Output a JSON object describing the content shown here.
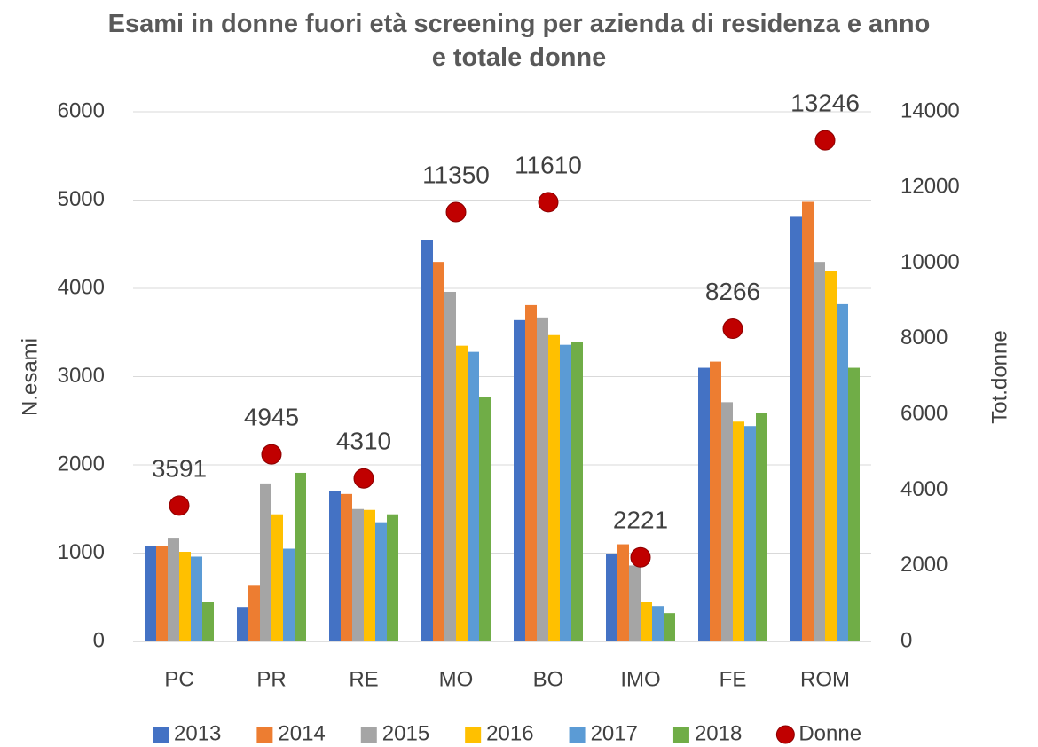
{
  "chart_data": {
    "type": "bar",
    "title": "Esami in donne fuori età screening per azienda di residenza e anno e totale donne",
    "y_label": "N.esami",
    "y2_label": "Tot.donne",
    "categories": [
      "PC",
      "PR",
      "RE",
      "MO",
      "BO",
      "IMO",
      "FE",
      "ROM"
    ],
    "series": [
      {
        "name": "2013",
        "color": "#4472c4",
        "values": [
          1085,
          390,
          1700,
          4550,
          3640,
          990,
          3100,
          4810
        ]
      },
      {
        "name": "2014",
        "color": "#ed7d31",
        "values": [
          1080,
          640,
          1670,
          4300,
          3810,
          1100,
          3170,
          4980
        ]
      },
      {
        "name": "2015",
        "color": "#a5a5a5",
        "values": [
          1175,
          1790,
          1500,
          3960,
          3670,
          860,
          2710,
          4300
        ]
      },
      {
        "name": "2016",
        "color": "#ffc000",
        "values": [
          1015,
          1440,
          1490,
          3350,
          3470,
          450,
          2490,
          4200
        ]
      },
      {
        "name": "2017",
        "color": "#5b9bd5",
        "values": [
          960,
          1050,
          1350,
          3280,
          3360,
          400,
          2440,
          3820
        ]
      },
      {
        "name": "2018",
        "color": "#70ad47",
        "values": [
          450,
          1910,
          1440,
          2770,
          3390,
          320,
          2590,
          3100
        ]
      },
      {
        "name": "Donne",
        "color": "#c00000",
        "type": "scatter",
        "axis": "y2",
        "values": [
          3591,
          4945,
          4310,
          11350,
          11610,
          2221,
          8266,
          13246
        ]
      }
    ],
    "ylim": [
      0,
      6000
    ],
    "yticks": [
      0,
      1000,
      2000,
      3000,
      4000,
      5000,
      6000
    ],
    "y2lim": [
      0,
      14000
    ],
    "y2ticks": [
      0,
      2000,
      4000,
      6000,
      8000,
      10000,
      12000,
      14000
    ],
    "grid": true,
    "legend": "bottom"
  }
}
